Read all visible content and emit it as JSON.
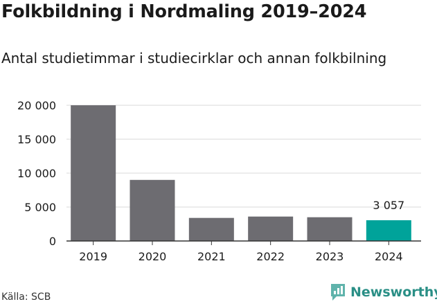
{
  "header": {
    "title": "Folkbildning i Nordmaling 2019–2024",
    "subtitle": "Antal studietimmar i studiecirklar och annan folkbilning"
  },
  "footer": {
    "source": "Källa: SCB",
    "brand": "Newsworthy"
  },
  "colors": {
    "bar": "#6d6c71",
    "highlight": "#00a39a",
    "grid": "#d9d9d9",
    "axis": "#333333",
    "brand": "#2a8f86"
  },
  "chart_data": {
    "type": "bar",
    "categories": [
      "2019",
      "2020",
      "2021",
      "2022",
      "2023",
      "2024"
    ],
    "values": [
      20000,
      9000,
      3400,
      3600,
      3500,
      3057
    ],
    "highlight_index": 5,
    "data_labels": [
      {
        "index": 5,
        "text": "3 057"
      }
    ],
    "ylim": [
      0,
      20000
    ],
    "yticks": [
      0,
      5000,
      10000,
      15000,
      20000
    ],
    "ytick_labels": [
      "0",
      "5 000",
      "10 000",
      "15 000",
      "20 000"
    ],
    "grid": true,
    "xlabel": "",
    "ylabel": ""
  }
}
